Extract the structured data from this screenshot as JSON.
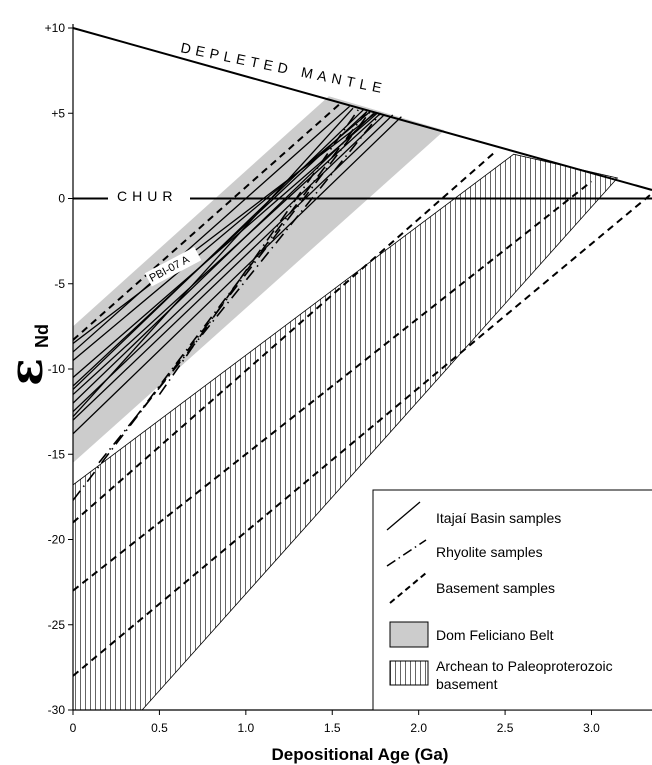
{
  "chart_data": {
    "type": "line",
    "title": "",
    "xlabel": "Depositional Age (Ga)",
    "ylabel_symbol": "ε",
    "ylabel_sub": "Nd",
    "xlim": [
      0,
      3.35
    ],
    "ylim": [
      -30,
      10
    ],
    "x_ticks": [
      {
        "v": 0,
        "label": "0"
      },
      {
        "v": 0.5,
        "label": "0.5"
      },
      {
        "v": 1,
        "label": "1.0"
      },
      {
        "v": 1.5,
        "label": "1.5"
      },
      {
        "v": 2,
        "label": "2.0"
      },
      {
        "v": 2.5,
        "label": "2.5"
      },
      {
        "v": 3,
        "label": "3.0"
      }
    ],
    "y_ticks": [
      {
        "v": 10,
        "label": "+10"
      },
      {
        "v": 5,
        "label": "+5"
      },
      {
        "v": 0,
        "label": "0"
      },
      {
        "v": -5,
        "label": "-5"
      },
      {
        "v": -10,
        "label": "-10"
      },
      {
        "v": -15,
        "label": "-15"
      },
      {
        "v": -20,
        "label": "-20"
      },
      {
        "v": -25,
        "label": "-25"
      },
      {
        "v": -30,
        "label": "-30"
      }
    ],
    "annotations": {
      "depleted_mantle": "DEPLETED MANTLE",
      "chur": "CHUR",
      "pbi": "PBI-07 A"
    },
    "reference_lines": {
      "depleted_mantle": [
        [
          0,
          10
        ],
        [
          3.35,
          0.5
        ]
      ],
      "chur": [
        [
          0,
          0
        ],
        [
          3.35,
          0
        ]
      ]
    },
    "regions": {
      "dom_feliciano": [
        [
          0,
          -7.5
        ],
        [
          1.48,
          6.0
        ],
        [
          2.15,
          4.0
        ],
        [
          0,
          -15.5
        ]
      ],
      "archean_basement": [
        [
          0,
          -16.8
        ],
        [
          2.55,
          2.6
        ],
        [
          3.15,
          1.2
        ],
        [
          0.4,
          -30
        ],
        [
          0,
          -30
        ]
      ]
    },
    "series": [
      {
        "name": "Itajaí Basin samples",
        "style": "solid",
        "lines": [
          [
            [
              0,
              -8.5
            ],
            [
              1.75,
              5.0
            ]
          ],
          [
            [
              0,
              -9.5
            ],
            [
              1.72,
              5.1
            ]
          ],
          [
            [
              0,
              -10.5
            ],
            [
              1.76,
              5.0
            ]
          ],
          [
            [
              0,
              -11.0
            ],
            [
              1.7,
              5.1
            ]
          ],
          [
            [
              0,
              -11.5
            ],
            [
              1.78,
              5.0
            ]
          ],
          [
            [
              0,
              -12.0
            ],
            [
              1.74,
              5.0
            ]
          ],
          [
            [
              0,
              -12.5
            ],
            [
              1.8,
              4.9
            ]
          ],
          [
            [
              0,
              -13.0
            ],
            [
              1.85,
              4.9
            ]
          ],
          [
            [
              0,
              -13.8
            ],
            [
              1.9,
              4.8
            ]
          ],
          [
            [
              0,
              -11.2
            ],
            [
              1.68,
              5.2
            ]
          ],
          [
            [
              0,
              -9.0
            ],
            [
              1.6,
              5.4
            ]
          ],
          [
            [
              0,
              -12.8
            ],
            [
              1.62,
              5.3
            ]
          ]
        ]
      },
      {
        "name": "Rhyolite samples",
        "style": "dashdot",
        "lines": [
          [
            [
              0,
              -17.7
            ],
            [
              1.72,
              5.1
            ]
          ],
          [
            [
              0.15,
              -15.5
            ],
            [
              1.78,
              5.0
            ]
          ],
          [
            [
              0.35,
              -13.0
            ],
            [
              1.7,
              5.1
            ]
          ],
          [
            [
              0.5,
              -11.5
            ],
            [
              1.65,
              5.2
            ]
          ]
        ]
      },
      {
        "name": "Basement samples",
        "style": "dashed",
        "lines": [
          [
            [
              0,
              -8.3
            ],
            [
              1.55,
              5.6
            ]
          ],
          [
            [
              0,
              -19.0
            ],
            [
              2.45,
              2.8
            ]
          ],
          [
            [
              0,
              -23.0
            ],
            [
              3.0,
              1.0
            ]
          ],
          [
            [
              0,
              -28.0
            ],
            [
              3.35,
              0.3
            ]
          ]
        ]
      }
    ],
    "legend": {
      "position": "bottom-right",
      "entries": [
        {
          "label": "Itajaí Basin samples",
          "kind": "solid"
        },
        {
          "label": "Rhyolite samples",
          "kind": "dashdot"
        },
        {
          "label": "Basement samples",
          "kind": "dashed"
        },
        {
          "label": "Dom Feliciano Belt",
          "kind": "gray-fill"
        },
        {
          "label": "Archean to Paleoproterozoic",
          "label2": "basement",
          "kind": "hatch"
        }
      ]
    },
    "colors": {
      "gray_fill": "#cccccc",
      "line": "#000000"
    }
  }
}
